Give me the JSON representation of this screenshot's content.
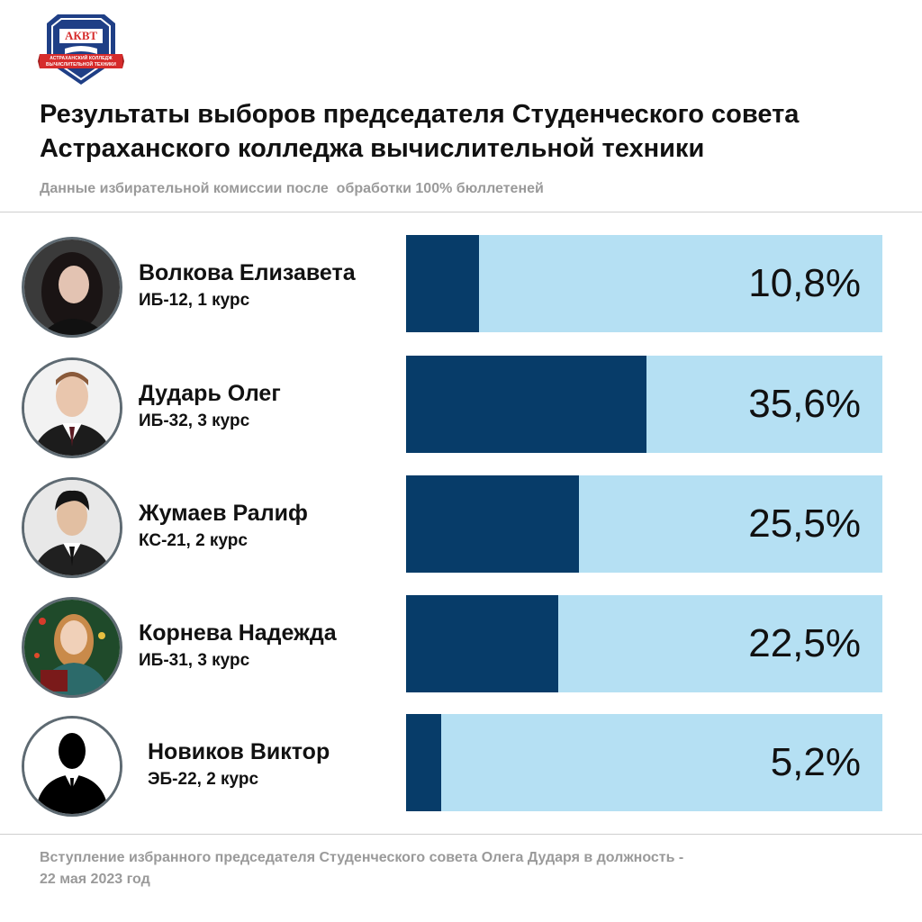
{
  "logo": {
    "abbr": "АКВТ",
    "line1": "АСТРАХАНСКИЙ КОЛЛЕДЖ",
    "line2": "ВЫЧИСЛИТЕЛЬНОЙ ТЕХНИКИ",
    "colors": {
      "shield": "#1f3f86",
      "ribbon": "#d62b2b",
      "frame": "#ffffff"
    }
  },
  "title": {
    "line1": "Результаты выборов председателя Студенческого совета",
    "line2": "Астраханского колледжа вычислительной техники"
  },
  "subtitle": "Данные избирательной комиссии после  обработки 100% бюллетеней",
  "colors": {
    "bar_fill": "#073c69",
    "bar_track": "#b5e0f3",
    "muted_text": "#9a9a9a"
  },
  "chart_data": {
    "type": "bar",
    "orientation": "horizontal",
    "xlim": [
      0,
      100
    ],
    "grid": false,
    "categories": [
      "Волкова Елизавета",
      "Дударь Олег",
      "Жумаев Ралиф",
      "Корнева Надежда",
      "Новиков Виктор"
    ],
    "values": [
      10.8,
      35.6,
      25.5,
      22.5,
      5.2
    ],
    "candidates": [
      {
        "name": "Волкова Елизавета",
        "group": "ИБ-12, 1 курс",
        "value": 10.8,
        "label": "10,8%",
        "avatar": "portrait-photo"
      },
      {
        "name": "Дударь Олег",
        "group": "ИБ-32, 3 курс",
        "value": 35.6,
        "label": "35,6%",
        "avatar": "portrait-photo"
      },
      {
        "name": "Жумаев Ралиф",
        "group": "КС-21, 2 курс",
        "value": 25.5,
        "label": "25,5%",
        "avatar": "portrait-photo"
      },
      {
        "name": "Корнева Надежда",
        "group": "ИБ-31, 3 курс",
        "value": 22.5,
        "label": "22,5%",
        "avatar": "portrait-photo"
      },
      {
        "name": "Новиков Виктор",
        "group": "ЭБ-22, 2 курс",
        "value": 5.2,
        "label": "5,2%",
        "avatar": "silhouette-icon"
      }
    ]
  },
  "footer": {
    "line1": "Вступление избранного председателя Студенческого совета Олега Дударя в должность -",
    "line2": "22 мая 2023 год"
  }
}
